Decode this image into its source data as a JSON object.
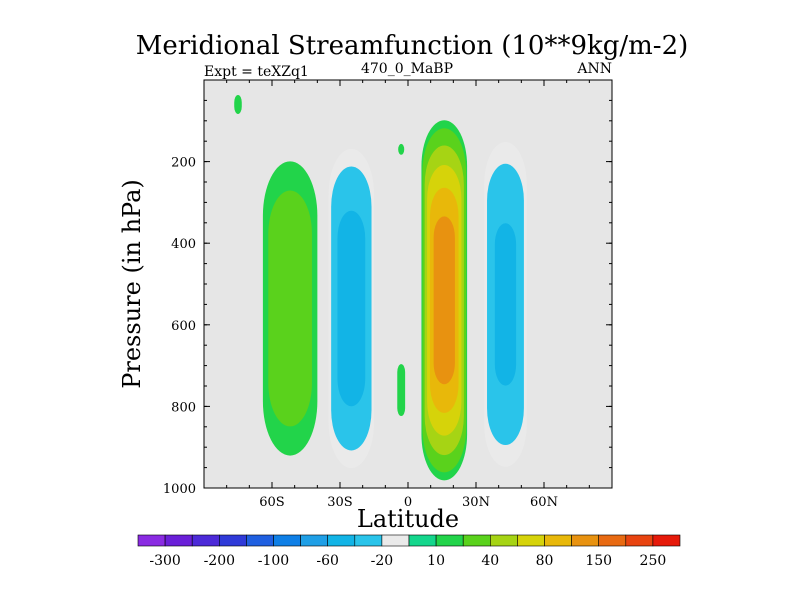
{
  "chart_data": {
    "type": "contour",
    "title": "Meridional Streamfunction (10**9kg/m-2)",
    "subtitle_left": "Expt = teXZq1",
    "subtitle_center": "470_0_MaBP",
    "subtitle_right": "ANN",
    "xlabel": "Latitude",
    "ylabel": "Pressure (in hPa)",
    "xlim": [
      -90,
      90
    ],
    "ylim": [
      0,
      1000
    ],
    "y_inverted": true,
    "xticks": [
      {
        "value": -60,
        "label": "60S"
      },
      {
        "value": -30,
        "label": "30S"
      },
      {
        "value": 0,
        "label": "0"
      },
      {
        "value": 30,
        "label": "30N"
      },
      {
        "value": 60,
        "label": "60N"
      }
    ],
    "yticks": [
      {
        "value": 200,
        "label": "200"
      },
      {
        "value": 400,
        "label": "400"
      },
      {
        "value": 600,
        "label": "600"
      },
      {
        "value": 800,
        "label": "800"
      },
      {
        "value": 1000,
        "label": "1000"
      }
    ],
    "levels": [
      -300,
      -250,
      -200,
      -150,
      -100,
      -80,
      -60,
      -40,
      -20,
      -10,
      10,
      20,
      40,
      60,
      80,
      100,
      150,
      200,
      250,
      300
    ],
    "colorbar_labels": [
      "-300",
      "-200",
      "-100",
      "-60",
      "-20",
      "10",
      "40",
      "80",
      "150",
      "250"
    ],
    "colorbar_colors": [
      "#8a2be2",
      "#6a1fd8",
      "#4c2ad8",
      "#2f3ad8",
      "#1f5fe0",
      "#0f7fe6",
      "#1f9fe6",
      "#12b4e6",
      "#2ac4ea",
      "#eaeaea",
      "#14d68c",
      "#22d44a",
      "#5ad21c",
      "#a6d414",
      "#d6d30a",
      "#e8b80a",
      "#e89210",
      "#e86a12",
      "#e84410",
      "#e61a0a"
    ],
    "background_color": "#e6e6e6",
    "cells": [
      {
        "name": "nh-polar-weak-cell",
        "center_lat": -75,
        "center_p": 60,
        "lat_halfwidth": 2.5,
        "p_halfwidth": 35,
        "peak": 18
      },
      {
        "name": "sh-ferrel-cell-main",
        "center_lat": -52,
        "center_p": 560,
        "lat_halfwidth": 14,
        "p_halfwidth": 420,
        "peak": 38
      },
      {
        "name": "sh-hadley-cell",
        "center_lat": -25,
        "center_p": 560,
        "lat_halfwidth": 11,
        "p_halfwidth": 430,
        "peak": -58
      },
      {
        "name": "equatorial-weak-cell",
        "center_lat": -3,
        "center_p": 760,
        "lat_halfwidth": 3,
        "p_halfwidth": 110,
        "peak": 15
      },
      {
        "name": "nh-hadley-cell",
        "center_lat": 16,
        "center_p": 540,
        "lat_halfwidth": 10.5,
        "p_halfwidth": 460,
        "peak": 125
      },
      {
        "name": "nh-ferrel-cell",
        "center_lat": 43,
        "center_p": 550,
        "lat_halfwidth": 10.5,
        "p_halfwidth": 445,
        "peak": -50
      },
      {
        "name": "small-upper-patch",
        "center_lat": -3,
        "center_p": 170,
        "lat_halfwidth": 2,
        "p_halfwidth": 20,
        "peak": 18
      }
    ]
  }
}
